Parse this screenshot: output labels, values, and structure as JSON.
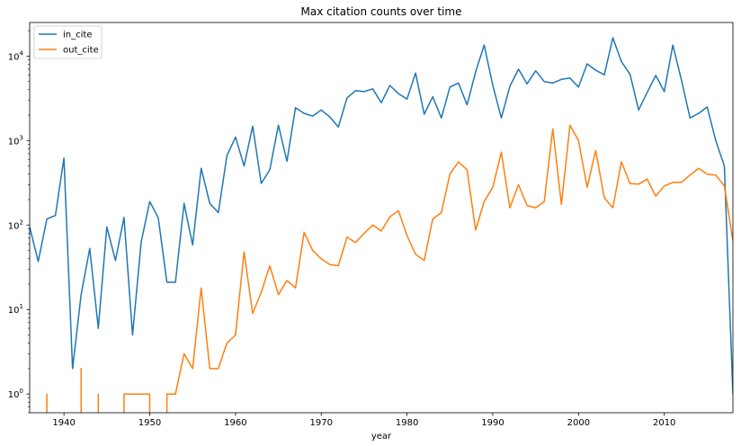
{
  "chart_data": {
    "type": "line",
    "title": "Max citation counts over time",
    "xlabel": "year",
    "ylabel": "",
    "yscale": "log",
    "xlim": [
      1936,
      2018
    ],
    "ylim": [
      0.6,
      25000
    ],
    "x_ticks": [
      1940,
      1950,
      1960,
      1970,
      1980,
      1990,
      2000,
      2010
    ],
    "y_ticks": [
      {
        "value": 1,
        "base": "10",
        "exp": "0"
      },
      {
        "value": 10,
        "base": "10",
        "exp": "1"
      },
      {
        "value": 100,
        "base": "10",
        "exp": "2"
      },
      {
        "value": 1000,
        "base": "10",
        "exp": "3"
      },
      {
        "value": 10000,
        "base": "10",
        "exp": "4"
      }
    ],
    "grid": false,
    "legend": "top-left",
    "series": [
      {
        "name": "in_cite",
        "color": "#1f77b4",
        "points": [
          [
            1936,
            95
          ],
          [
            1937,
            37
          ],
          [
            1938,
            118
          ],
          [
            1939,
            130
          ],
          [
            1940,
            620
          ],
          [
            1941,
            2
          ],
          [
            1942,
            15
          ],
          [
            1943,
            53
          ],
          [
            1944,
            6
          ],
          [
            1945,
            95
          ],
          [
            1946,
            38
          ],
          [
            1947,
            123
          ],
          [
            1948,
            5
          ],
          [
            1949,
            63
          ],
          [
            1950,
            190
          ],
          [
            1951,
            122
          ],
          [
            1952,
            21
          ],
          [
            1953,
            21
          ],
          [
            1954,
            180
          ],
          [
            1955,
            58
          ],
          [
            1956,
            470
          ],
          [
            1957,
            180
          ],
          [
            1958,
            140
          ],
          [
            1959,
            660
          ],
          [
            1960,
            1100
          ],
          [
            1961,
            500
          ],
          [
            1962,
            1480
          ],
          [
            1963,
            310
          ],
          [
            1964,
            450
          ],
          [
            1965,
            1520
          ],
          [
            1966,
            570
          ],
          [
            1967,
            2450
          ],
          [
            1968,
            2100
          ],
          [
            1969,
            1950
          ],
          [
            1970,
            2300
          ],
          [
            1971,
            1900
          ],
          [
            1972,
            1450
          ],
          [
            1973,
            3200
          ],
          [
            1974,
            3900
          ],
          [
            1975,
            3800
          ],
          [
            1976,
            4100
          ],
          [
            1977,
            2800
          ],
          [
            1978,
            4500
          ],
          [
            1979,
            3600
          ],
          [
            1980,
            3100
          ],
          [
            1981,
            6300
          ],
          [
            1982,
            2050
          ],
          [
            1983,
            3300
          ],
          [
            1984,
            1850
          ],
          [
            1985,
            4300
          ],
          [
            1986,
            4800
          ],
          [
            1987,
            2650
          ],
          [
            1988,
            6500
          ],
          [
            1989,
            13500
          ],
          [
            1990,
            4500
          ],
          [
            1991,
            1850
          ],
          [
            1992,
            4400
          ],
          [
            1993,
            7000
          ],
          [
            1994,
            4700
          ],
          [
            1995,
            6700
          ],
          [
            1996,
            5000
          ],
          [
            1997,
            4800
          ],
          [
            1998,
            5300
          ],
          [
            1999,
            5500
          ],
          [
            2000,
            4300
          ],
          [
            2001,
            8100
          ],
          [
            2002,
            6800
          ],
          [
            2003,
            6000
          ],
          [
            2004,
            16500
          ],
          [
            2005,
            8600
          ],
          [
            2006,
            6100
          ],
          [
            2007,
            2300
          ],
          [
            2008,
            3700
          ],
          [
            2009,
            5900
          ],
          [
            2010,
            3800
          ],
          [
            2011,
            13500
          ],
          [
            2012,
            5200
          ],
          [
            2013,
            1850
          ],
          [
            2014,
            2100
          ],
          [
            2015,
            2500
          ],
          [
            2016,
            1000
          ],
          [
            2017,
            500
          ],
          [
            2018,
            1
          ]
        ]
      },
      {
        "name": "out_cite",
        "color": "#ff7f0e",
        "segments": [
          [
            [
              1938,
              0.3
            ],
            [
              1938,
              1
            ],
            [
              1938,
              0.3
            ]
          ],
          [
            [
              1942,
              0.3
            ],
            [
              1942,
              2
            ],
            [
              1942,
              0.3
            ]
          ],
          [
            [
              1944,
              0.3
            ],
            [
              1944,
              1
            ],
            [
              1944,
              0.3
            ]
          ],
          [
            [
              1947,
              0.3
            ],
            [
              1947,
              1
            ],
            [
              1948,
              1
            ],
            [
              1949,
              1
            ],
            [
              1950,
              1
            ],
            [
              1950,
              0.3
            ]
          ],
          [
            [
              1952,
              0.3
            ],
            [
              1952,
              1
            ],
            [
              1953,
              1
            ],
            [
              1954,
              3
            ],
            [
              1955,
              2
            ],
            [
              1956,
              18
            ],
            [
              1957,
              2
            ],
            [
              1958,
              2
            ],
            [
              1959,
              4
            ],
            [
              1960,
              5
            ],
            [
              1961,
              48
            ],
            [
              1962,
              9
            ],
            [
              1963,
              16
            ],
            [
              1964,
              33
            ],
            [
              1965,
              15
            ],
            [
              1966,
              22
            ],
            [
              1967,
              18
            ],
            [
              1968,
              82
            ],
            [
              1969,
              50
            ],
            [
              1970,
              40
            ],
            [
              1971,
              34
            ],
            [
              1972,
              33
            ],
            [
              1973,
              72
            ],
            [
              1974,
              62
            ],
            [
              1975,
              80
            ],
            [
              1976,
              100
            ],
            [
              1977,
              85
            ],
            [
              1978,
              125
            ],
            [
              1979,
              148
            ],
            [
              1980,
              75
            ],
            [
              1981,
              45
            ],
            [
              1982,
              38
            ],
            [
              1983,
              118
            ],
            [
              1984,
              140
            ],
            [
              1985,
              400
            ],
            [
              1986,
              560
            ],
            [
              1987,
              450
            ],
            [
              1988,
              87
            ],
            [
              1989,
              190
            ],
            [
              1990,
              280
            ],
            [
              1991,
              730
            ],
            [
              1992,
              160
            ],
            [
              1993,
              300
            ],
            [
              1994,
              170
            ],
            [
              1995,
              160
            ],
            [
              1996,
              190
            ],
            [
              1997,
              1380
            ],
            [
              1998,
              175
            ],
            [
              1999,
              1520
            ],
            [
              2000,
              1000
            ],
            [
              2001,
              280
            ],
            [
              2002,
              760
            ],
            [
              2003,
              210
            ],
            [
              2004,
              160
            ],
            [
              2005,
              560
            ],
            [
              2006,
              310
            ],
            [
              2007,
              305
            ],
            [
              2008,
              350
            ],
            [
              2009,
              220
            ],
            [
              2010,
              290
            ],
            [
              2011,
              320
            ],
            [
              2012,
              320
            ],
            [
              2013,
              390
            ],
            [
              2014,
              470
            ],
            [
              2015,
              400
            ],
            [
              2016,
              390
            ],
            [
              2017,
              290
            ],
            [
              2018,
              65
            ]
          ]
        ]
      }
    ]
  }
}
